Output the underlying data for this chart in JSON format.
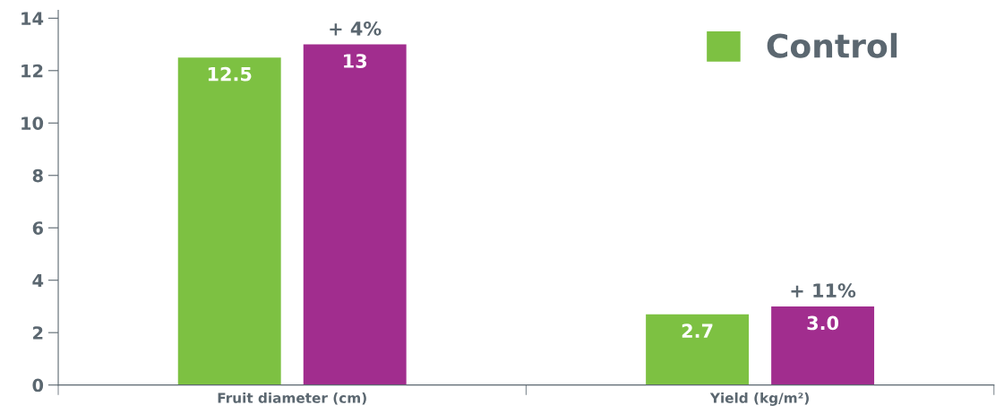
{
  "chart_data": {
    "type": "bar",
    "categories": [
      "Fruit diameter (cm)",
      "Yield (kg/m²)"
    ],
    "series": [
      {
        "name": "Control",
        "color": "#7dc142",
        "values": [
          12.5,
          2.7
        ],
        "value_labels": [
          "12.5",
          "2.7"
        ]
      },
      {
        "color": "#a12d8e",
        "values": [
          13,
          3.0
        ],
        "value_labels": [
          "13",
          "3.0"
        ]
      }
    ],
    "ylim": [
      0,
      14.3
    ],
    "yticks": [
      0,
      2,
      4,
      6,
      8,
      10,
      12,
      14
    ],
    "grid": false,
    "legend": "top right",
    "annotations": [
      "+ 4%",
      "+ 11%"
    ]
  }
}
